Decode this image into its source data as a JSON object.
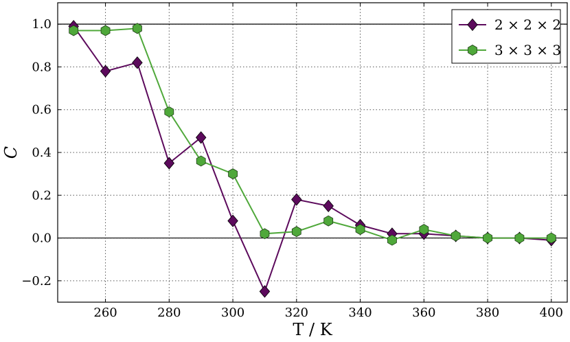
{
  "chart_data": {
    "type": "line",
    "xlabel": "T / K",
    "ylabel": "C",
    "xlim": [
      245,
      405
    ],
    "ylim": [
      -0.3,
      1.1
    ],
    "xticks": [
      260,
      280,
      300,
      320,
      340,
      360,
      380,
      400
    ],
    "yticks": [
      -0.2,
      0.0,
      0.2,
      0.4,
      0.6,
      0.8,
      1.0
    ],
    "ytick_labels": [
      "−0.2",
      "0.0",
      "0.2",
      "0.4",
      "0.6",
      "0.8",
      "1.0"
    ],
    "grid": true,
    "reference_lines_y": [
      0.0,
      1.0
    ],
    "legend_position": "top-right",
    "x": [
      250,
      260,
      270,
      280,
      290,
      300,
      310,
      320,
      330,
      340,
      350,
      360,
      370,
      380,
      390,
      400
    ],
    "series": [
      {
        "name": "2 × 2 × 2",
        "marker": "diamond",
        "color": "#5c0a5c",
        "values": [
          0.99,
          0.78,
          0.82,
          0.35,
          0.47,
          0.08,
          -0.25,
          0.18,
          0.15,
          0.06,
          0.02,
          0.02,
          0.01,
          0.0,
          0.0,
          -0.01
        ]
      },
      {
        "name": "3 × 3 × 3",
        "marker": "hexagon",
        "color": "#4fa83a",
        "values": [
          0.97,
          0.97,
          0.98,
          0.59,
          0.36,
          0.3,
          0.02,
          0.03,
          0.08,
          0.04,
          -0.01,
          0.04,
          0.01,
          0.0,
          0.0,
          0.0
        ]
      }
    ]
  }
}
